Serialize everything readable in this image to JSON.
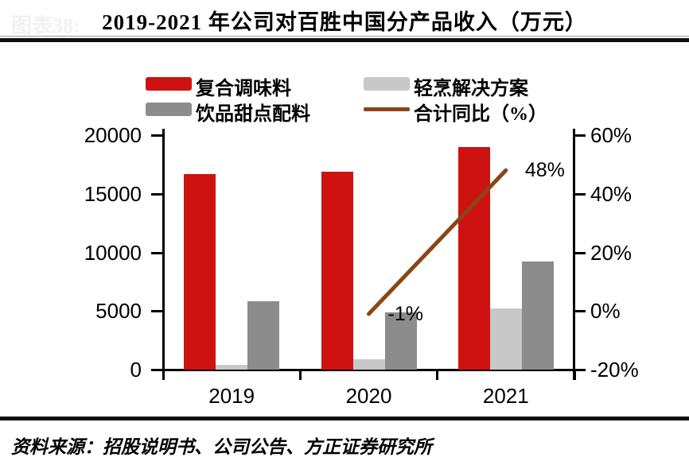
{
  "watermark": "图表38:",
  "header": {
    "title": "2019-2021 年公司对百胜中国分产品收入（万元）"
  },
  "footer": {
    "source": "资料来源：招股说明书、公司公告、方正证券研究所"
  },
  "colors": {
    "compound_seasoning": "#CE1212",
    "light_cooking": "#C8C8C8",
    "beverage_dessert": "#8C8C8C",
    "total_yoy_line": "#8A4616",
    "axis": "#000000",
    "rule": "#111111"
  },
  "chart_data": {
    "type": "bar+line",
    "title": "2019-2021 年公司对百胜中国分产品收入（万元）",
    "categories": [
      "2019",
      "2020",
      "2021"
    ],
    "series": [
      {
        "key": "compound-seasoning",
        "name": "复合调味料",
        "type": "bar",
        "axis": "left",
        "color": "#CE1212",
        "values": [
          16700,
          16900,
          19000
        ]
      },
      {
        "key": "light-cooking-solutions",
        "name": "轻烹解决方案",
        "type": "bar",
        "axis": "left",
        "color": "#C8C8C8",
        "values": [
          400,
          900,
          5200
        ]
      },
      {
        "key": "beverage-dessert-ingredients",
        "name": "饮品甜点配料",
        "type": "bar",
        "axis": "left",
        "color": "#8C8C8C",
        "values": [
          5800,
          4900,
          9200
        ]
      },
      {
        "key": "total-yoy",
        "name": "合计同比（%）",
        "type": "line",
        "axis": "right",
        "color": "#8A4616",
        "values": [
          null,
          -1,
          48
        ],
        "point_labels": [
          "",
          "-1%",
          "48%"
        ]
      }
    ],
    "left_axis": {
      "min": 0,
      "max": 20000,
      "ticks": [
        "20000",
        "15000",
        "10000",
        "5000",
        "0"
      ]
    },
    "right_axis": {
      "min": -20,
      "max": 60,
      "ticks": [
        "60%",
        "40%",
        "20%",
        "0%",
        "-20%"
      ]
    },
    "grid": false,
    "legend_position": "top",
    "bar_order": [
      "复合调味料",
      "轻烹解决方案",
      "饮品甜点配料"
    ]
  }
}
